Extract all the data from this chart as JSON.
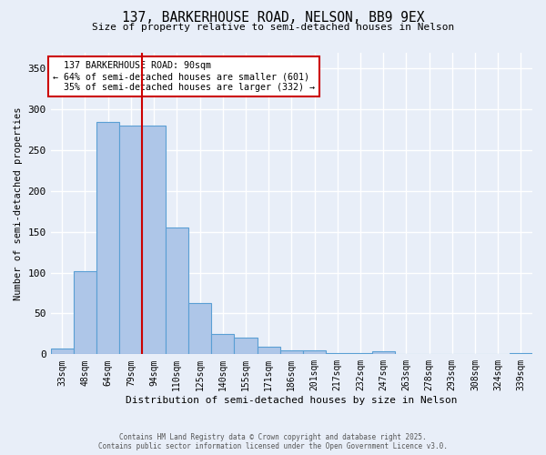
{
  "title_line1": "137, BARKERHOUSE ROAD, NELSON, BB9 9EX",
  "title_line2": "Size of property relative to semi-detached houses in Nelson",
  "xlabel": "Distribution of semi-detached houses by size in Nelson",
  "ylabel": "Number of semi-detached properties",
  "categories": [
    "33sqm",
    "48sqm",
    "64sqm",
    "79sqm",
    "94sqm",
    "110sqm",
    "125sqm",
    "140sqm",
    "155sqm",
    "171sqm",
    "186sqm",
    "201sqm",
    "217sqm",
    "232sqm",
    "247sqm",
    "263sqm",
    "278sqm",
    "293sqm",
    "308sqm",
    "324sqm",
    "339sqm"
  ],
  "values": [
    7,
    102,
    285,
    280,
    280,
    155,
    63,
    25,
    20,
    9,
    5,
    5,
    1,
    1,
    4,
    0,
    0,
    0,
    0,
    0,
    2
  ],
  "bar_color": "#aec6e8",
  "bar_edge_color": "#5a9fd4",
  "vline_bin_index": 4,
  "highlight_label": "137 BARKERHOUSE ROAD: 90sqm",
  "pct_smaller": "64%",
  "count_smaller": "601",
  "pct_larger": "35%",
  "count_larger": "332",
  "annotation_box_color": "#ffffff",
  "annotation_box_edge_color": "#cc0000",
  "vline_color": "#cc0000",
  "ylim": [
    0,
    370
  ],
  "yticks": [
    0,
    50,
    100,
    150,
    200,
    250,
    300,
    350
  ],
  "background_color": "#e8eef8",
  "grid_color": "#ffffff",
  "footer_line1": "Contains HM Land Registry data © Crown copyright and database right 2025.",
  "footer_line2": "Contains public sector information licensed under the Open Government Licence v3.0."
}
